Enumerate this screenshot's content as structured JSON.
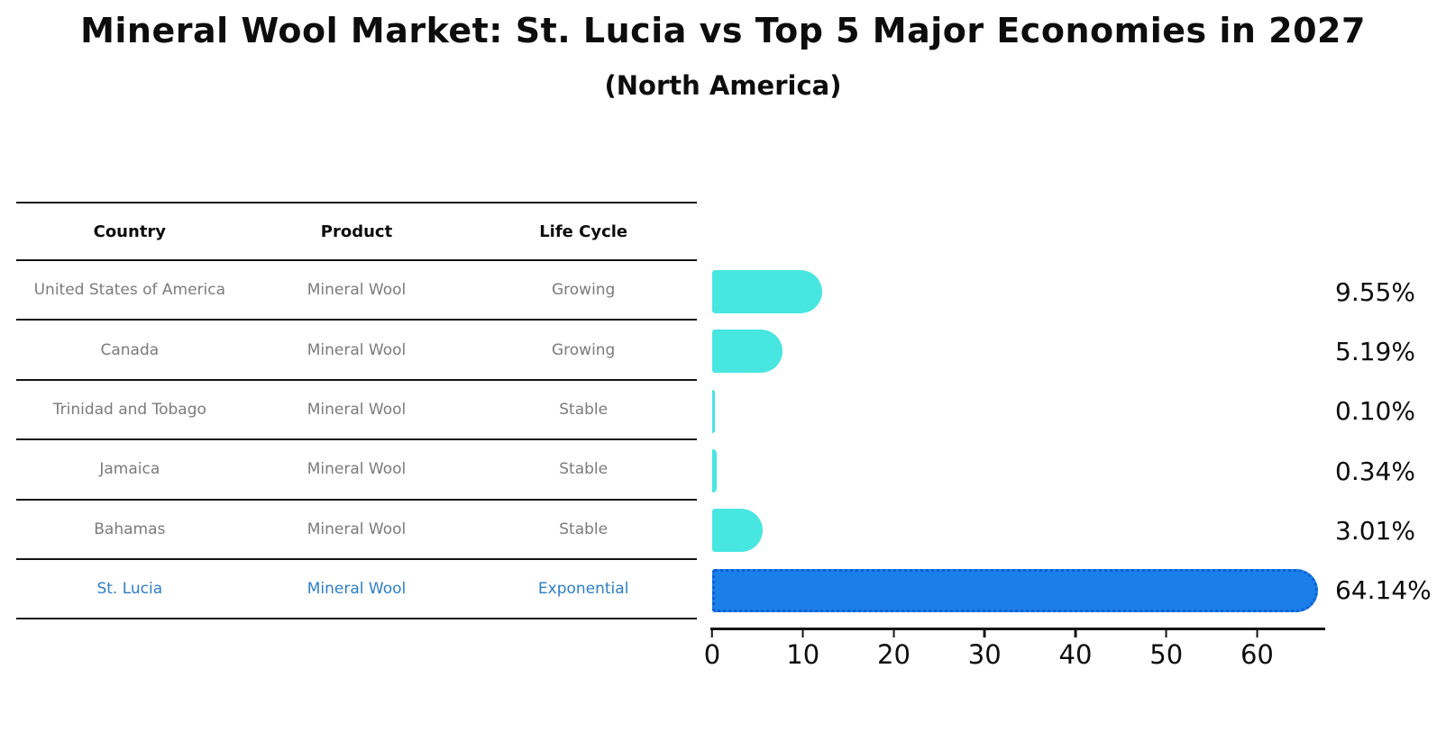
{
  "title": "Mineral Wool Market: St. Lucia vs Top 5 Major Economies in 2027",
  "subtitle": "(North America)",
  "table": {
    "headers": [
      "Country",
      "Product",
      "Life Cycle"
    ],
    "rows": [
      {
        "country": "United States of America",
        "product": "Mineral Wool",
        "life_cycle": "Growing",
        "highlight": false
      },
      {
        "country": "Canada",
        "product": "Mineral Wool",
        "life_cycle": "Growing",
        "highlight": false
      },
      {
        "country": "Trinidad and Tobago",
        "product": "Mineral Wool",
        "life_cycle": "Stable",
        "highlight": false
      },
      {
        "country": "Jamaica",
        "product": "Mineral Wool",
        "life_cycle": "Stable",
        "highlight": false
      },
      {
        "country": "Bahamas",
        "product": "Mineral Wool",
        "life_cycle": "Stable",
        "highlight": false
      },
      {
        "country": "St. Lucia",
        "product": "Mineral Wool",
        "life_cycle": "Exponential",
        "highlight": true
      }
    ]
  },
  "chart_data": {
    "type": "bar",
    "orientation": "horizontal",
    "title": "Mineral Wool Market: St. Lucia vs Top 5 Major Economies in 2027 (North America)",
    "categories": [
      "United States of America",
      "Canada",
      "Trinidad and Tobago",
      "Jamaica",
      "Bahamas",
      "St. Lucia"
    ],
    "values": [
      9.55,
      5.19,
      0.1,
      0.34,
      3.01,
      64.14
    ],
    "value_labels": [
      "9.55%",
      "5.19%",
      "0.10%",
      "0.34%",
      "3.01%",
      "64.14%"
    ],
    "xlabel": "",
    "ylabel": "",
    "xticks": [
      0,
      10,
      20,
      30,
      40,
      50,
      60
    ],
    "xlim": [
      0,
      67.5
    ],
    "grid": false,
    "legend": false,
    "highlight_index": 5,
    "colors": {
      "bar_default": "#48e6e1",
      "bar_highlight": "#1a7fe8",
      "bar_highlight_border": "#0c5fd6",
      "highlight_text": "#2e7ec6",
      "text": "#0d0d0d",
      "muted_text": "#7b7b7b"
    }
  }
}
